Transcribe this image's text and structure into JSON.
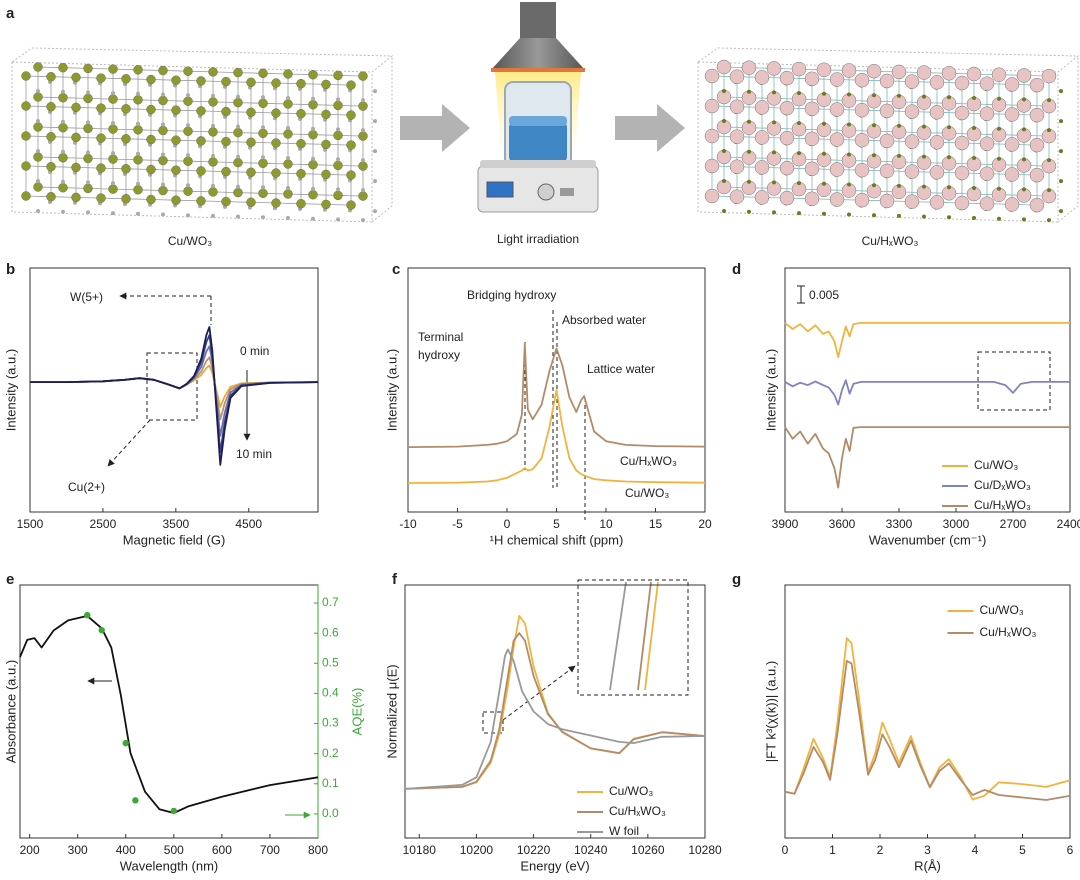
{
  "panel_a": {
    "label": "a",
    "captions": [
      "Cu/WO₃",
      "Light irradiation",
      "Cu/HₓWO₃"
    ]
  },
  "chart_data": [
    {
      "label": "b",
      "type": "line",
      "xlabel": "Magnetic field (G)",
      "ylabel": "Intensity (a.u.)",
      "xlim": [
        1500,
        5450
      ],
      "xticks": [
        1500,
        2500,
        3500,
        4500
      ],
      "ylim": [
        -165,
        145
      ],
      "x": [
        1500,
        2000,
        2500,
        2800,
        3000,
        3200,
        3400,
        3550,
        3650,
        3750,
        3850,
        3920,
        3960,
        4000,
        4060,
        4110,
        4170,
        4250,
        4400,
        4800,
        5450
      ],
      "series": [
        {
          "color": "#e8a93c",
          "values": [
            0,
            0,
            1,
            3,
            5,
            3,
            -3,
            -8,
            -3.4,
            2.4,
            9,
            18,
            21,
            12,
            -12,
            -31.5,
            -18,
            -6,
            -1.5,
            -0.3,
            0
          ]
        },
        {
          "color": "#b9946e",
          "values": [
            0,
            0,
            1,
            3,
            5,
            3,
            -3,
            -8,
            -3.1,
            3.6,
            13.5,
            27,
            31.5,
            18,
            -18,
            -47.3,
            -27,
            -9,
            -2.3,
            -0.5,
            0
          ]
        },
        {
          "color": "#6e6fa8",
          "values": [
            0,
            0,
            1,
            3,
            5,
            3,
            -3,
            -8,
            -2.7,
            5.2,
            19.5,
            39,
            45.5,
            26,
            -26,
            -68.3,
            -39,
            -13,
            -3.3,
            -0.7,
            0
          ]
        },
        {
          "color": "#3a3d85",
          "values": [
            0,
            0,
            1,
            3,
            5,
            3,
            -3,
            -8,
            -2.3,
            6.8,
            25.5,
            51,
            59.5,
            34,
            -34,
            -89.3,
            -51,
            -17,
            -4.3,
            -0.9,
            0
          ]
        },
        {
          "color": "#1c1f55",
          "values": [
            0,
            0,
            1,
            3,
            5,
            3,
            -3,
            -8,
            -2,
            8,
            30,
            60,
            70,
            40,
            -40,
            -105,
            -60,
            -20,
            -5,
            -1,
            0
          ]
        }
      ],
      "annotations": [
        "W(5+)",
        "Cu(2+)",
        "0 min",
        "10 min"
      ]
    },
    {
      "label": "c",
      "type": "line",
      "xlabel": "¹H chemical shift (ppm)",
      "ylabel": "Intensity (a.u.)",
      "xlim": [
        -10,
        20
      ],
      "xticks": [
        -10,
        -5,
        0,
        5,
        10,
        15,
        20
      ],
      "ylim": [
        0,
        100
      ],
      "legend": "direct",
      "x": [
        -10,
        -5,
        -2,
        -1,
        0,
        1,
        1.5,
        1.8,
        2.1,
        2.6,
        3.5,
        4.3,
        5,
        5.6,
        6.3,
        7,
        7.5,
        7.8,
        8.1,
        8.8,
        10,
        12,
        15,
        20
      ],
      "series": [
        {
          "name": "Cu/HₓWO₃",
          "color": "#b38b68",
          "values": [
            26.6,
            26.8,
            27.5,
            28,
            29,
            32,
            40,
            69,
            42,
            38,
            44,
            58,
            67,
            60,
            47,
            41,
            46,
            47.5,
            43,
            33,
            29,
            27.5,
            27,
            26.8
          ]
        },
        {
          "name": "Cu/WO₃",
          "color": "#f2b33d",
          "values": [
            11.9,
            12,
            12.5,
            13,
            14,
            16,
            17,
            18,
            17,
            17.5,
            22,
            35,
            50,
            35,
            22,
            17,
            15.5,
            15,
            14.5,
            13.5,
            13,
            12.5,
            12.2,
            12
          ]
        }
      ],
      "annotations": [
        "Bridging hydroxy",
        "Terminal",
        "hydroxy",
        "Absorbed water",
        "Lattice water"
      ]
    },
    {
      "label": "d",
      "type": "line",
      "xlabel": "Wavenumber (cm⁻¹)",
      "ylabel": "Intensity (a.u.)",
      "xlim": [
        3900,
        2400
      ],
      "xticks": [
        3900,
        3600,
        3300,
        3000,
        2700,
        2400
      ],
      "ylim": [
        0,
        100
      ],
      "legend": "lower right",
      "x": [
        3900,
        3860,
        3820,
        3780,
        3740,
        3700,
        3670,
        3640,
        3620,
        3600,
        3580,
        3560,
        3540,
        3500,
        3300,
        3000,
        2800,
        2740,
        2700,
        2660,
        2600,
        2400
      ],
      "series": [
        {
          "name": "Cu/WO₃",
          "color": "#f2b33d",
          "values": [
            77.5,
            75,
            77,
            74,
            76.5,
            73,
            74,
            70,
            63.5,
            70,
            76,
            72,
            77,
            77.5,
            77.5,
            77.5,
            77.5,
            77.5,
            77.5,
            77.5,
            77.5,
            77.5
          ]
        },
        {
          "name": "Cu/DₓWO₃",
          "color": "#7f83c0",
          "values": [
            53.3,
            51.5,
            53,
            52,
            53.5,
            52,
            51,
            48,
            44,
            50,
            54,
            48.5,
            52.5,
            53.3,
            53.3,
            53.3,
            53.3,
            52,
            48.8,
            52.5,
            53.3,
            53.3
          ]
        },
        {
          "name": "Cu/HₓWO₃",
          "color": "#b38b68",
          "values": [
            34.8,
            30,
            33,
            28,
            32,
            26,
            24,
            18,
            10,
            22,
            30,
            25,
            34.5,
            34.8,
            34.8,
            34.8,
            34.8,
            34.8,
            34.8,
            34.8,
            34.8,
            34.8
          ]
        }
      ],
      "annotations": [
        "0.005"
      ]
    },
    {
      "label": "e",
      "type": "line",
      "xlabel": "Wavelength (nm)",
      "ylabel": "Absorbance (a.u.)",
      "y2label": "AQE(%)",
      "y2color": "#3aaa35",
      "xlim": [
        180,
        800
      ],
      "xticks": [
        200,
        300,
        400,
        500,
        600,
        700,
        800
      ],
      "ylim": [
        0,
        100
      ],
      "y2lim": [
        -0.08,
        0.76
      ],
      "y2ticks": [
        {
          "value": 0,
          "label": "0.0"
        },
        0.1,
        0.2,
        0.3,
        0.4,
        0.5,
        0.6,
        0.7
      ],
      "x": [
        180,
        195,
        210,
        225,
        250,
        280,
        320,
        350,
        370,
        390,
        410,
        440,
        470,
        500,
        530,
        600,
        700,
        800
      ],
      "series": [
        {
          "color": "#111111",
          "values": [
            71.5,
            78.3,
            79,
            75.3,
            82,
            86,
            87.8,
            82.9,
            75.3,
            56.3,
            33.5,
            18.3,
            11.4,
            9.9,
            12.5,
            16.3,
            20.9,
            24
          ]
        },
        {
          "color": "#3aaa35",
          "axis": "y2",
          "mode": "markers",
          "x": [
            320,
            350,
            400,
            420,
            500
          ],
          "values": [
            0.66,
            0.61,
            0.235,
            0.045,
            0.01
          ]
        }
      ]
    },
    {
      "label": "f",
      "type": "line",
      "xlabel": "Energy (eV)",
      "ylabel": "Normalized μ(E)",
      "xlim": [
        10175,
        10280
      ],
      "xticks": [
        10180,
        10200,
        10220,
        10240,
        10260,
        10280
      ],
      "ylim": [
        0,
        100
      ],
      "legend": "lower right",
      "x": [
        10175,
        10195,
        10200,
        10205,
        10208,
        10211,
        10213,
        10215,
        10217,
        10220,
        10225,
        10230,
        10240,
        10250,
        10255,
        10265,
        10280
      ],
      "series": [
        {
          "name": "Cu/WO₃",
          "color": "#f2b33d",
          "values": [
            19.4,
            20.2,
            22,
            29.7,
            41,
            60,
            75.3,
            87.8,
            84.8,
            67.7,
            49.4,
            41.8,
            35.4,
            33.5,
            39.2,
            41.8,
            40.3
          ]
        },
        {
          "name": "Cu/HₓWO₃",
          "color": "#b38b68",
          "values": [
            19.4,
            20.2,
            22.2,
            30.5,
            43,
            64,
            78,
            81,
            78,
            64,
            49,
            42,
            35.4,
            33.5,
            39,
            41.8,
            40.3
          ]
        },
        {
          "name": "W foil",
          "color": "#999999",
          "x": [
            10175,
            10195,
            10200,
            10205,
            10208,
            10210,
            10211,
            10213,
            10216,
            10220,
            10225,
            10230,
            10240,
            10250,
            10255,
            10265,
            10280
          ],
          "values": [
            19.4,
            21,
            24,
            38,
            58,
            72,
            74.5,
            70,
            58,
            50,
            45,
            43,
            40.5,
            38,
            37.5,
            40,
            40.3
          ]
        }
      ]
    },
    {
      "label": "g",
      "type": "line",
      "xlabel": "R(Å)",
      "ylabel": "|FT k³(χ(k))| (a.u.)",
      "xlim": [
        0,
        6
      ],
      "xticks": [
        0,
        1,
        2,
        3,
        4,
        5,
        6
      ],
      "ylim": [
        0,
        100
      ],
      "legend": "upper center",
      "x": [
        0,
        0.2,
        0.4,
        0.6,
        0.8,
        0.95,
        1.1,
        1.3,
        1.4,
        1.55,
        1.75,
        1.9,
        2.05,
        2.2,
        2.4,
        2.65,
        2.85,
        3.05,
        3.25,
        3.45,
        3.7,
        3.95,
        4.2,
        4.5,
        5,
        5.5,
        6
      ],
      "series": [
        {
          "name": "Cu/WO₃",
          "color": "#f2b33d",
          "values": [
            18.3,
            17.5,
            27.8,
            39.2,
            31.6,
            24,
            44.9,
            79,
            77,
            56.3,
            25.9,
            33.5,
            45.6,
            39.2,
            29.7,
            40.3,
            29.7,
            20.2,
            27.8,
            31.2,
            24,
            15.2,
            16.7,
            22,
            21.3,
            20.2,
            22.8
          ]
        },
        {
          "name": "Cu/HₓWO₃",
          "color": "#b38b68",
          "values": [
            18.3,
            17.5,
            26,
            36,
            30,
            23,
            41,
            70,
            69,
            51,
            25,
            31,
            41,
            36,
            28,
            38.5,
            28.5,
            20,
            26.5,
            29.5,
            23,
            17,
            19,
            17,
            16,
            15,
            16.7
          ]
        }
      ]
    }
  ]
}
